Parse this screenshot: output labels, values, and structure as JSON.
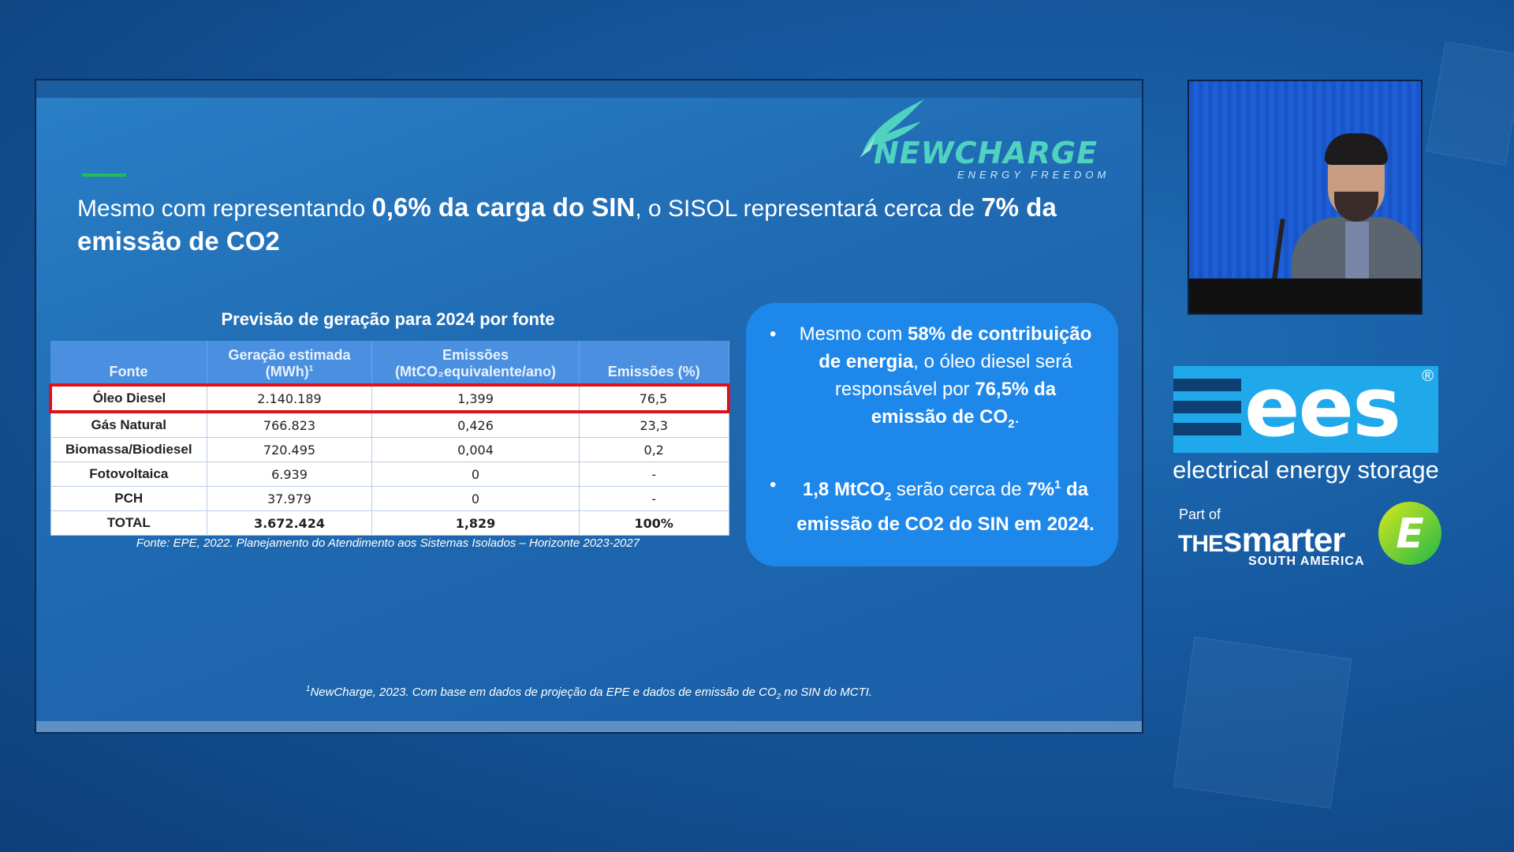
{
  "logo": {
    "name": "NEWCHARGE",
    "tagline": "ENERGY FREEDOM"
  },
  "headline": {
    "p1": "Mesmo com representando ",
    "b1": "0,6% da carga do SIN",
    "p2": ", o SISOL representará cerca de ",
    "b2": "7% da emissão de CO2"
  },
  "table": {
    "title": "Previsão de geração para 2024 por fonte",
    "headers": {
      "fonte": "Fonte",
      "geracao_1": "Geração estimada",
      "geracao_2": "(MWh)",
      "geracao_sup": "1",
      "emissoes_1": "Emissões",
      "emissoes_2": "(MtCO₂equivalente/ano)",
      "emissoes_pct": "Emissões (%)"
    },
    "rows": [
      {
        "fonte": "Óleo Diesel",
        "geracao": "2.140.189",
        "emissoes": "1,399",
        "pct": "76,5"
      },
      {
        "fonte": "Gás Natural",
        "geracao": "766.823",
        "emissoes": "0,426",
        "pct": "23,3"
      },
      {
        "fonte": "Biomassa/Biodiesel",
        "geracao": "720.495",
        "emissoes": "0,004",
        "pct": "0,2"
      },
      {
        "fonte": "Fotovoltaica",
        "geracao": "6.939",
        "emissoes": "0",
        "pct": "-"
      },
      {
        "fonte": "PCH",
        "geracao": "37.979",
        "emissoes": "0",
        "pct": "-"
      },
      {
        "fonte": "TOTAL",
        "geracao": "3.672.424",
        "emissoes": "1,829",
        "pct": "100%"
      }
    ],
    "source": "Fonte: EPE, 2022. Planejamento do Atendimento aos Sistemas Isolados – Horizonte 2023-2027"
  },
  "callout": {
    "bullet": "•",
    "item1": {
      "p1": "Mesmo com ",
      "b1": "58% de contribuição de energia",
      "p2": ", o óleo diesel será responsável por ",
      "b2": "76,5% da emissão de CO",
      "sub": "2",
      "end": "."
    },
    "item2": {
      "b1": "1,8 MtCO",
      "sub": "2",
      "p1": " serão cerca de ",
      "b2": "7%",
      "sup": "1",
      "b3": " da emissão de CO2 do SIN em 2024."
    }
  },
  "footnote": {
    "sup": "1",
    "text": "NewCharge, 2023. Com base em dados de projeção da EPE e dados de emissão de CO",
    "sub": "2",
    "end": " no SIN do MCTI."
  },
  "event": {
    "ees": "ees",
    "reg": "®",
    "caption": "electrical energy storage",
    "part_of": "Part of",
    "the": "THE",
    "smarter": "smarter",
    "south_america": "SOUTH AMERICA",
    "badge_letter": "E"
  },
  "colors": {
    "slide_bg": "#1f6ab2",
    "callout_bg": "#1e88ea",
    "table_header": "#4a8fe0",
    "highlight": "#e0101a",
    "accent_green": "#1fbf58",
    "logo_teal": "#4fd2c0",
    "ees_blue": "#1fa9ea"
  }
}
